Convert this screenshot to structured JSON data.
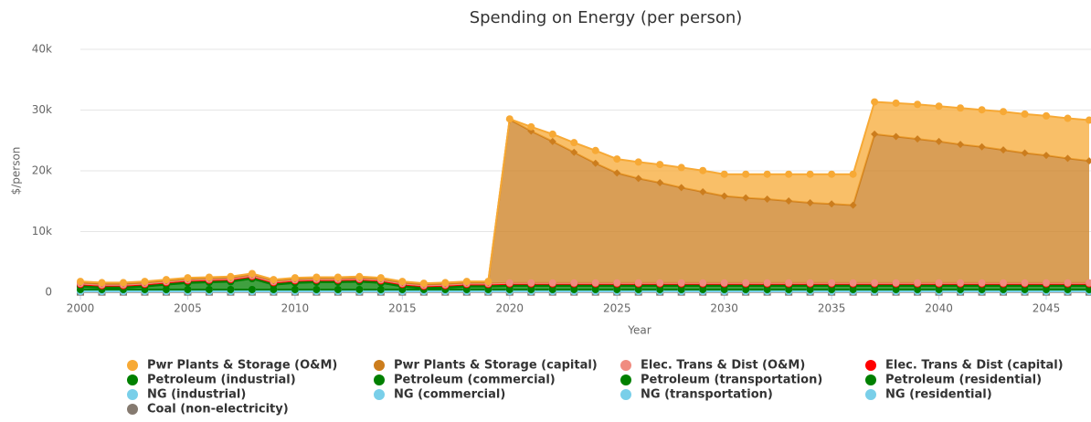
{
  "chart_data": {
    "type": "area",
    "stacked": true,
    "title": "Spending on Energy (per person)",
    "x_label": "Year",
    "y_label": "$/person",
    "x": [
      2000,
      2001,
      2002,
      2003,
      2004,
      2005,
      2006,
      2007,
      2008,
      2009,
      2010,
      2011,
      2012,
      2013,
      2014,
      2015,
      2016,
      2017,
      2018,
      2019,
      2020,
      2021,
      2022,
      2023,
      2024,
      2025,
      2026,
      2027,
      2028,
      2029,
      2030,
      2031,
      2032,
      2033,
      2034,
      2035,
      2036,
      2037,
      2038,
      2039,
      2040,
      2041,
      2042,
      2043,
      2044,
      2045,
      2046,
      2047
    ],
    "xlim": [
      2000,
      2047
    ],
    "xticks": [
      2000,
      2005,
      2010,
      2015,
      2020,
      2025,
      2030,
      2035,
      2040,
      2045
    ],
    "ylim": [
      0,
      40000
    ],
    "yticks": [
      0,
      {
        "value": 10000,
        "label": "10k"
      },
      {
        "value": 20000,
        "label": "20k"
      },
      {
        "value": 30000,
        "label": "30k"
      },
      {
        "value": 40000,
        "label": "40k"
      }
    ],
    "grid": true,
    "series": [
      {
        "name": "Pwr Plants & Storage (O&M)",
        "color": "#f7a935",
        "values": [
          150,
          150,
          150,
          150,
          150,
          150,
          150,
          150,
          150,
          150,
          150,
          150,
          150,
          150,
          150,
          150,
          150,
          150,
          150,
          150,
          100,
          700,
          1200,
          1600,
          2100,
          2300,
          2700,
          3000,
          3300,
          3500,
          3600,
          3900,
          4100,
          4400,
          4700,
          4900,
          5100,
          5300,
          5500,
          5700,
          5800,
          6000,
          6100,
          6300,
          6400,
          6500,
          6600,
          6700
        ]
      },
      {
        "name": "Pwr Plants & Storage (capital)",
        "color": "#cc7d1d",
        "values": [
          200,
          200,
          200,
          200,
          200,
          200,
          200,
          200,
          200,
          200,
          200,
          200,
          200,
          200,
          200,
          200,
          200,
          200,
          200,
          200,
          26900,
          25000,
          23300,
          21500,
          19700,
          18100,
          17200,
          16500,
          15700,
          15000,
          14300,
          14000,
          13800,
          13500,
          13200,
          13000,
          12800,
          24500,
          24100,
          23700,
          23300,
          22800,
          22400,
          21900,
          21400,
          21000,
          20500,
          20100
        ]
      },
      {
        "name": "Elec. Trans & Dist (O&M)",
        "color": "#f08c80",
        "values": [
          150,
          150,
          150,
          150,
          150,
          150,
          150,
          150,
          150,
          150,
          150,
          150,
          150,
          150,
          150,
          150,
          150,
          150,
          150,
          150,
          150,
          150,
          150,
          150,
          150,
          150,
          150,
          150,
          150,
          150,
          150,
          150,
          150,
          150,
          150,
          150,
          150,
          150,
          150,
          150,
          150,
          150,
          150,
          150,
          150,
          150,
          150,
          150
        ]
      },
      {
        "name": "Elec. Trans & Dist (capital)",
        "color": "#ff0000",
        "values": [
          100,
          100,
          100,
          100,
          100,
          100,
          100,
          100,
          100,
          100,
          100,
          100,
          100,
          100,
          100,
          100,
          100,
          100,
          100,
          100,
          100,
          100,
          100,
          100,
          100,
          100,
          100,
          100,
          100,
          100,
          100,
          100,
          100,
          100,
          100,
          100,
          100,
          100,
          100,
          100,
          100,
          100,
          100,
          100,
          100,
          100,
          100,
          100
        ]
      },
      {
        "name": "Petroleum (industrial)",
        "color": "#008000",
        "values": [
          200,
          200,
          200,
          200,
          200,
          200,
          200,
          200,
          200,
          200,
          200,
          200,
          200,
          200,
          200,
          200,
          200,
          200,
          200,
          200,
          200,
          200,
          200,
          200,
          200,
          200,
          200,
          200,
          200,
          200,
          200,
          200,
          200,
          200,
          200,
          200,
          200,
          200,
          200,
          200,
          200,
          200,
          200,
          200,
          200,
          200,
          200,
          200
        ]
      },
      {
        "name": "Petroleum (commercial)",
        "color": "#008000",
        "values": [
          40,
          40,
          40,
          40,
          40,
          40,
          40,
          40,
          40,
          40,
          40,
          40,
          40,
          40,
          40,
          40,
          40,
          40,
          40,
          40,
          40,
          40,
          40,
          40,
          40,
          40,
          40,
          40,
          40,
          40,
          40,
          40,
          40,
          40,
          40,
          40,
          40,
          40,
          40,
          40,
          40,
          40,
          40,
          40,
          40,
          40,
          40,
          40
        ]
      },
      {
        "name": "Petroleum (transportation)",
        "color": "#008000",
        "values": [
          500,
          300,
          300,
          500,
          800,
          1100,
          1200,
          1300,
          1800,
          800,
          1100,
          1200,
          1200,
          1300,
          1100,
          500,
          200,
          300,
          500,
          500,
          600,
          600,
          600,
          600,
          600,
          600,
          600,
          600,
          600,
          600,
          600,
          600,
          600,
          600,
          600,
          600,
          600,
          600,
          600,
          600,
          600,
          600,
          600,
          600,
          600,
          600,
          600,
          600
        ]
      },
      {
        "name": "Petroleum (residential)",
        "color": "#008000",
        "values": [
          60,
          60,
          60,
          60,
          60,
          60,
          60,
          60,
          60,
          60,
          60,
          60,
          60,
          60,
          60,
          60,
          60,
          60,
          60,
          60,
          60,
          60,
          60,
          60,
          60,
          60,
          60,
          60,
          60,
          60,
          60,
          60,
          60,
          60,
          60,
          60,
          60,
          60,
          60,
          60,
          60,
          60,
          60,
          60,
          60,
          60,
          60,
          60
        ]
      },
      {
        "name": "NG (industrial)",
        "color": "#79cfe9",
        "values": [
          150,
          150,
          150,
          150,
          150,
          150,
          150,
          150,
          150,
          150,
          150,
          150,
          150,
          150,
          150,
          150,
          150,
          150,
          150,
          150,
          150,
          150,
          150,
          150,
          150,
          150,
          150,
          150,
          150,
          150,
          150,
          150,
          150,
          150,
          150,
          150,
          150,
          150,
          150,
          150,
          150,
          150,
          150,
          150,
          150,
          150,
          150,
          150
        ]
      },
      {
        "name": "NG (commercial)",
        "color": "#79cfe9",
        "values": [
          80,
          80,
          80,
          80,
          80,
          80,
          80,
          80,
          80,
          80,
          80,
          80,
          80,
          80,
          80,
          80,
          80,
          80,
          80,
          80,
          80,
          80,
          80,
          80,
          80,
          80,
          80,
          80,
          80,
          80,
          80,
          80,
          80,
          80,
          80,
          80,
          80,
          80,
          80,
          80,
          80,
          80,
          80,
          80,
          80,
          80,
          80,
          80
        ]
      },
      {
        "name": "NG (transportation)",
        "color": "#79cfe9",
        "values": [
          10,
          10,
          10,
          10,
          10,
          10,
          10,
          10,
          10,
          10,
          10,
          10,
          10,
          10,
          10,
          10,
          10,
          10,
          10,
          10,
          10,
          10,
          10,
          10,
          10,
          10,
          10,
          10,
          10,
          10,
          10,
          10,
          10,
          10,
          10,
          10,
          10,
          10,
          10,
          10,
          10,
          10,
          10,
          10,
          10,
          10,
          10,
          10
        ]
      },
      {
        "name": "NG (residential)",
        "color": "#79cfe9",
        "values": [
          100,
          100,
          100,
          100,
          100,
          100,
          100,
          100,
          100,
          100,
          100,
          100,
          100,
          100,
          100,
          100,
          100,
          100,
          100,
          100,
          100,
          100,
          100,
          100,
          100,
          100,
          100,
          100,
          100,
          100,
          100,
          100,
          100,
          100,
          100,
          100,
          100,
          100,
          100,
          100,
          100,
          100,
          100,
          100,
          100,
          100,
          100,
          100
        ]
      },
      {
        "name": "Coal (non-electricity)",
        "color": "#857a70",
        "values": [
          50,
          50,
          50,
          50,
          50,
          50,
          50,
          50,
          50,
          50,
          50,
          50,
          50,
          50,
          50,
          50,
          50,
          50,
          50,
          50,
          50,
          50,
          50,
          50,
          50,
          50,
          50,
          50,
          50,
          50,
          50,
          50,
          50,
          50,
          50,
          50,
          50,
          50,
          50,
          50,
          50,
          50,
          50,
          50,
          50,
          50,
          50,
          50
        ]
      }
    ]
  }
}
